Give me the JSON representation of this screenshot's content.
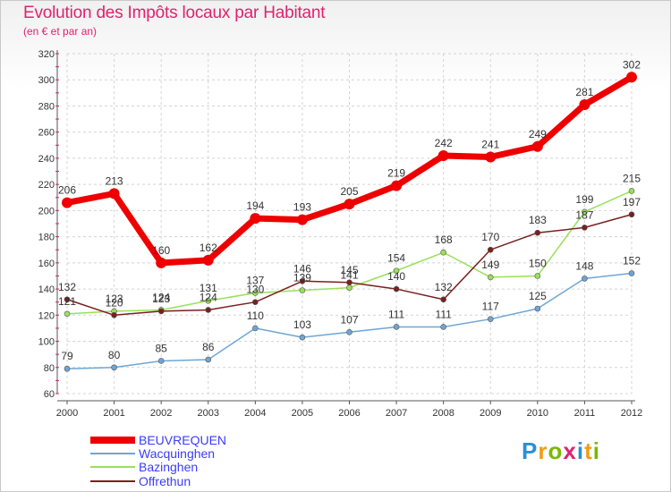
{
  "header": {
    "title": "Evolution des Impôts locaux par Habitant",
    "subtitle": "(en € et par an)"
  },
  "logo": {
    "letters": [
      "P",
      "r",
      "o",
      "x",
      "i",
      "t",
      "i"
    ],
    "colors": [
      "#2b8fd6",
      "#f39c12",
      "#7ab800",
      "#e0226e",
      "#2b8fd6",
      "#f39c12",
      "#7ab800"
    ]
  },
  "chart_data": {
    "type": "line",
    "title": "Evolution des Impôts locaux par Habitant",
    "subtitle": "(en € et par an)",
    "xlabel": "",
    "ylabel": "",
    "x": [
      "2000",
      "2001",
      "2002",
      "2003",
      "2004",
      "2005",
      "2006",
      "2007",
      "2008",
      "2009",
      "2010",
      "2011",
      "2012"
    ],
    "ylim": [
      60,
      320
    ],
    "yticks": [
      60,
      80,
      100,
      120,
      140,
      160,
      180,
      200,
      220,
      240,
      260,
      280,
      300,
      320
    ],
    "grid": true,
    "legend_position": "bottom-left",
    "series": [
      {
        "name": "BEUVREQUEN",
        "color": "#ee0000",
        "values": [
          206,
          213,
          160,
          162,
          194,
          193,
          205,
          219,
          242,
          241,
          249,
          281,
          302
        ],
        "labels": [
          "206",
          "213",
          "160",
          "162",
          "194",
          "193",
          "205",
          "219",
          "242",
          "241",
          "249",
          "281",
          "302"
        ]
      },
      {
        "name": "Wacquinghen",
        "color": "#6fa5d4",
        "values": [
          79,
          80,
          85,
          86,
          110,
          103,
          107,
          111,
          111,
          117,
          125,
          148,
          152
        ],
        "labels": [
          "79",
          "80",
          "85",
          "86",
          "110",
          "103",
          "107",
          "111",
          "111",
          "117",
          "125",
          "148",
          "152"
        ]
      },
      {
        "name": "Bazinghen",
        "color": "#99e05a",
        "values": [
          121,
          123,
          124,
          131,
          137,
          139,
          141,
          154,
          168,
          149,
          150,
          199,
          215
        ],
        "labels": [
          "121",
          "123",
          "124",
          "131",
          "137",
          "139",
          "141",
          "154",
          "168",
          "149",
          "150",
          "199",
          "215"
        ]
      },
      {
        "name": "Offrethun",
        "color": "#7a1f1f",
        "values": [
          132,
          120,
          123,
          124,
          130,
          146,
          145,
          140,
          132,
          170,
          183,
          187,
          197
        ],
        "labels": [
          "132",
          "120",
          "123",
          "124",
          "130",
          "146",
          "145",
          "140",
          "132",
          "170",
          "183",
          "187",
          "197"
        ]
      }
    ]
  }
}
